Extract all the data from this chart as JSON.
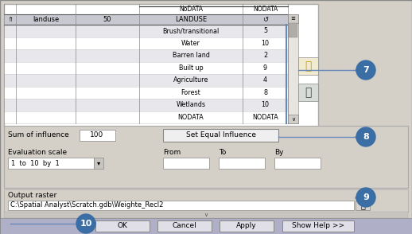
{
  "bg_color": "#d4d0c8",
  "white": "#ffffff",
  "border_color": "#888888",
  "dark_border": "#444444",
  "blue_line": "#6688bb",
  "header_bg": "#c8c8d0",
  "row_alt": "#e8e8ec",
  "circle_color": "#3a6ea5",
  "circle_text": "#ffffff",
  "scrollbar_bg": "#e0ddd8",
  "scrollbar_thumb": "#b0aaa0",
  "table_header_row": [
    "⇑",
    "landuse",
    "50",
    "LANDUSE",
    "↺"
  ],
  "table_rows": [
    [
      "",
      "",
      "",
      "Brush/transitional",
      "5"
    ],
    [
      "",
      "",
      "",
      "Water",
      "10"
    ],
    [
      "",
      "",
      "",
      "Barren land",
      "2"
    ],
    [
      "",
      "",
      "",
      "Built up",
      "9"
    ],
    [
      "",
      "",
      "",
      "Agriculture",
      "4"
    ],
    [
      "",
      "",
      "",
      "Forest",
      "8"
    ],
    [
      "",
      "",
      "",
      "Wetlands",
      "10"
    ],
    [
      "",
      "",
      "",
      "NODATA",
      "NODATA"
    ]
  ],
  "sum_of_influence_label": "Sum of influence",
  "sum_of_influence_value": "100",
  "set_equal_influence_btn": "Set Equal Influence",
  "evaluation_scale_label": "Evaluation scale",
  "evaluation_scale_value": "1  to  10  by  1",
  "from_label": "From",
  "to_label": "To",
  "by_label": "By",
  "output_raster_label": "Output raster",
  "output_raster_value": "C:\\Spatial Analyst\\Scratch.gdb\\Weighte_Recl2",
  "buttons": [
    "OK",
    "Cancel",
    "Apply",
    "Show Help >>"
  ]
}
